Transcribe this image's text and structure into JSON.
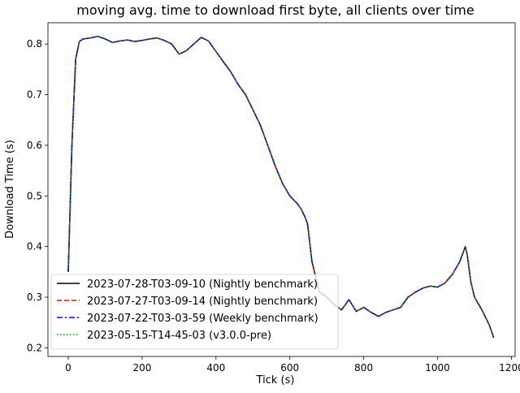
{
  "chart_data": {
    "type": "line",
    "title": "moving avg. time to download first byte, all clients over time",
    "xlabel": "Tick (s)",
    "ylabel": "Download Time (s)",
    "xlim": [
      -55,
      1210
    ],
    "ylim": [
      0.183,
      0.842
    ],
    "x_ticks": [
      0,
      200,
      400,
      600,
      800,
      1000,
      1200
    ],
    "y_ticks": [
      0.2,
      0.3,
      0.4,
      0.5,
      0.6,
      0.7,
      0.8
    ],
    "grid": false,
    "legend_placement": "lower-left",
    "x": [
      0,
      10,
      20,
      30,
      40,
      60,
      80,
      100,
      120,
      140,
      160,
      180,
      200,
      220,
      240,
      260,
      280,
      300,
      320,
      340,
      360,
      380,
      400,
      420,
      440,
      460,
      480,
      500,
      520,
      540,
      560,
      580,
      600,
      620,
      630,
      640,
      648,
      660,
      680,
      700,
      720,
      740,
      760,
      780,
      800,
      820,
      840,
      860,
      880,
      900,
      920,
      940,
      960,
      980,
      1000,
      1020,
      1040,
      1060,
      1070,
      1075,
      1080,
      1090,
      1100,
      1120,
      1140,
      1152
    ],
    "series": [
      {
        "name": "2023-07-28-T03-09-10 (Nightly benchmark)",
        "color": "#000000",
        "dash": "solid",
        "values": [
          0.35,
          0.6,
          0.77,
          0.805,
          0.81,
          0.812,
          0.815,
          0.81,
          0.803,
          0.806,
          0.808,
          0.805,
          0.807,
          0.81,
          0.812,
          0.807,
          0.8,
          0.78,
          0.787,
          0.8,
          0.813,
          0.806,
          0.785,
          0.765,
          0.745,
          0.72,
          0.7,
          0.67,
          0.64,
          0.6,
          0.56,
          0.525,
          0.5,
          0.485,
          0.475,
          0.46,
          0.445,
          0.37,
          0.31,
          0.3,
          0.285,
          0.275,
          0.295,
          0.272,
          0.28,
          0.27,
          0.262,
          0.27,
          0.275,
          0.28,
          0.3,
          0.31,
          0.318,
          0.322,
          0.32,
          0.328,
          0.345,
          0.37,
          0.39,
          0.4,
          0.385,
          0.33,
          0.3,
          0.275,
          0.245,
          0.22
        ]
      },
      {
        "name": "2023-07-27-T03-09-14 (Nightly benchmark)",
        "color": "#ff0000",
        "dash": "dashed",
        "values": [
          0.35,
          0.6,
          0.77,
          0.805,
          0.81,
          0.812,
          0.815,
          0.81,
          0.803,
          0.806,
          0.808,
          0.805,
          0.807,
          0.81,
          0.812,
          0.807,
          0.8,
          0.78,
          0.787,
          0.8,
          0.813,
          0.806,
          0.785,
          0.765,
          0.745,
          0.72,
          0.7,
          0.67,
          0.64,
          0.6,
          0.56,
          0.525,
          0.5,
          0.485,
          0.475,
          0.46,
          0.445,
          0.37,
          0.31,
          0.3,
          0.285,
          0.275,
          0.295,
          0.272,
          0.28,
          0.27,
          0.262,
          0.27,
          0.275,
          0.28,
          0.3,
          0.31,
          0.318,
          0.322,
          0.32,
          0.328,
          0.345,
          0.37,
          0.39,
          0.4,
          0.385,
          0.33,
          0.3,
          0.275,
          0.245,
          0.22
        ]
      },
      {
        "name": "2023-07-22-T03-03-59 (Weekly benchmark)",
        "color": "#0000ff",
        "dash": "dashdot",
        "values": [
          0.35,
          0.6,
          0.77,
          0.805,
          0.81,
          0.812,
          0.815,
          0.81,
          0.803,
          0.806,
          0.808,
          0.805,
          0.807,
          0.81,
          0.812,
          0.807,
          0.8,
          0.78,
          0.787,
          0.8,
          0.813,
          0.806,
          0.785,
          0.765,
          0.745,
          0.72,
          0.7,
          0.67,
          0.64,
          0.6,
          0.56,
          0.525,
          0.5,
          0.485,
          0.475,
          0.46,
          0.445,
          0.37,
          0.31,
          0.3,
          0.285,
          0.275,
          0.295,
          0.272,
          0.28,
          0.27,
          0.262,
          0.27,
          0.275,
          0.28,
          0.3,
          0.31,
          0.318,
          0.322,
          0.32,
          0.328,
          0.345,
          0.37,
          0.39,
          0.4,
          0.385,
          0.33,
          0.3,
          0.275,
          0.245,
          0.22
        ]
      },
      {
        "name": "2023-05-15-T14-45-03 (v3.0.0-pre)",
        "color": "#008000",
        "dash": "dotted",
        "values": [
          0.35,
          0.6,
          0.77,
          0.805,
          0.81,
          0.812,
          0.815,
          0.81,
          0.803,
          0.806,
          0.808,
          0.805,
          0.807,
          0.81,
          0.812,
          0.807,
          0.8,
          0.78,
          0.787,
          0.8,
          0.813,
          0.806,
          0.785,
          0.765,
          0.745,
          0.72,
          0.7,
          0.67,
          0.64,
          0.6,
          0.56,
          0.525,
          0.5,
          0.485,
          0.475,
          0.46,
          0.445,
          0.37,
          0.31,
          0.3,
          0.285,
          0.275,
          0.295,
          0.272,
          0.28,
          0.27,
          0.262,
          0.27,
          0.275,
          0.28,
          0.3,
          0.31,
          0.318,
          0.322,
          0.32,
          0.328,
          0.345,
          0.37,
          0.39,
          0.4,
          0.385,
          0.33,
          0.3,
          0.275,
          0.245,
          0.22
        ]
      }
    ]
  }
}
